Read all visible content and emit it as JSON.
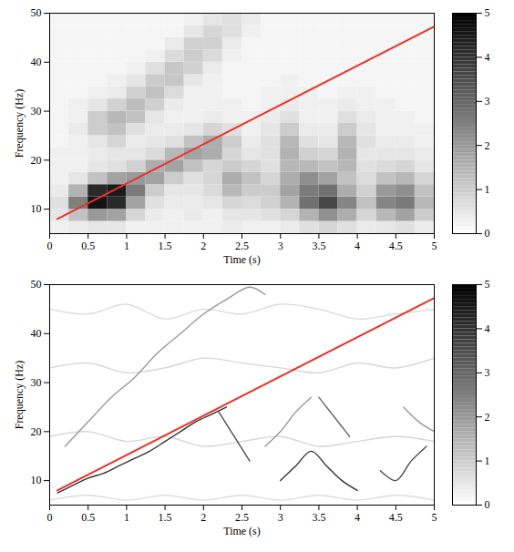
{
  "chart_data": [
    {
      "type": "heatmap",
      "x_label": "Time (s)",
      "y_label": "Frequency (Hz)",
      "xlim": [
        0,
        5
      ],
      "ylim": [
        5,
        50
      ],
      "xticks": [
        0,
        0.5,
        1,
        1.5,
        2,
        2.5,
        3,
        3.5,
        4,
        4.5,
        5
      ],
      "yticks": [
        10,
        20,
        30,
        40,
        50
      ],
      "x_bins": [
        0,
        0.25,
        0.5,
        0.75,
        1,
        1.25,
        1.5,
        1.75,
        2,
        2.25,
        2.5,
        2.75,
        3,
        3.25,
        3.5,
        3.75,
        4,
        4.25,
        4.5,
        4.75,
        5
      ],
      "y_bins": [
        5,
        7.5,
        10,
        12.5,
        15,
        17.5,
        20,
        22.5,
        25,
        27.5,
        30,
        32.5,
        35,
        37.5,
        40,
        42.5,
        45,
        47.5,
        50
      ],
      "cells": [
        [
          0.3,
          0.4,
          0.5,
          0.5,
          0.3,
          0.3,
          0.3,
          0.3,
          0.3,
          0.4,
          0.3,
          0.3,
          0.4,
          0.6,
          0.8,
          0.6,
          0.4,
          0.5,
          0.6,
          0.4
        ],
        [
          0.5,
          1.2,
          2.0,
          1.8,
          0.8,
          0.4,
          0.3,
          0.4,
          0.3,
          0.5,
          0.5,
          0.6,
          0.8,
          1.5,
          2.2,
          1.6,
          0.8,
          1.4,
          1.8,
          1.0
        ],
        [
          0.6,
          2.5,
          4.6,
          4.2,
          1.8,
          0.6,
          0.4,
          0.4,
          0.5,
          0.8,
          0.7,
          0.9,
          1.5,
          2.8,
          3.6,
          2.4,
          1.2,
          2.4,
          2.6,
          1.4
        ],
        [
          0.4,
          1.5,
          4.2,
          4.5,
          2.6,
          1.0,
          0.5,
          0.5,
          0.7,
          1.4,
          1.0,
          1.0,
          1.8,
          2.6,
          2.8,
          1.6,
          0.9,
          2.0,
          2.2,
          1.2
        ],
        [
          0.3,
          0.5,
          1.2,
          1.8,
          2.0,
          1.8,
          1.0,
          0.6,
          0.8,
          1.6,
          1.2,
          0.8,
          1.6,
          2.2,
          1.8,
          1.2,
          0.7,
          1.2,
          1.4,
          0.8
        ],
        [
          0.3,
          0.3,
          0.5,
          0.6,
          0.9,
          1.6,
          1.8,
          1.2,
          0.8,
          1.0,
          0.8,
          0.6,
          1.4,
          1.4,
          1.2,
          1.4,
          0.6,
          0.7,
          0.8,
          0.5
        ],
        [
          0.3,
          0.3,
          0.4,
          0.5,
          0.5,
          0.7,
          1.4,
          1.8,
          1.6,
          0.8,
          0.5,
          0.6,
          1.5,
          0.9,
          0.8,
          1.5,
          0.5,
          0.5,
          0.5,
          0.4
        ],
        [
          0.2,
          0.3,
          0.5,
          0.8,
          0.4,
          0.5,
          0.6,
          1.2,
          1.6,
          1.0,
          0.4,
          0.6,
          1.4,
          0.6,
          0.5,
          1.4,
          0.6,
          0.4,
          0.4,
          0.3
        ],
        [
          0.2,
          0.4,
          1.0,
          1.2,
          0.6,
          0.4,
          0.4,
          0.5,
          0.8,
          0.6,
          0.3,
          0.5,
          1.0,
          0.4,
          0.4,
          1.0,
          0.5,
          0.3,
          0.3,
          0.3
        ],
        [
          0.2,
          0.3,
          1.0,
          1.4,
          1.2,
          0.5,
          0.3,
          0.3,
          0.4,
          0.3,
          0.3,
          0.4,
          0.6,
          0.3,
          0.3,
          0.6,
          0.4,
          0.3,
          0.3,
          0.2
        ],
        [
          0.2,
          0.3,
          0.5,
          0.9,
          1.3,
          0.9,
          0.4,
          0.3,
          0.3,
          0.3,
          0.2,
          0.3,
          0.4,
          0.3,
          0.3,
          0.4,
          0.3,
          0.3,
          0.2,
          0.2
        ],
        [
          0.2,
          0.2,
          0.3,
          0.4,
          0.9,
          1.2,
          0.7,
          0.3,
          0.3,
          0.2,
          0.2,
          0.3,
          0.3,
          0.3,
          0.2,
          0.3,
          0.3,
          0.2,
          0.2,
          0.2
        ],
        [
          0.2,
          0.2,
          0.2,
          0.3,
          0.5,
          1.0,
          1.1,
          0.5,
          0.3,
          0.2,
          0.2,
          0.2,
          0.3,
          0.2,
          0.2,
          0.2,
          0.2,
          0.2,
          0.2,
          0.2
        ],
        [
          0.2,
          0.2,
          0.2,
          0.2,
          0.3,
          0.6,
          1.1,
          0.9,
          0.4,
          0.2,
          0.2,
          0.2,
          0.2,
          0.2,
          0.2,
          0.2,
          0.2,
          0.2,
          0.2,
          0.2
        ],
        [
          0.2,
          0.2,
          0.2,
          0.2,
          0.2,
          0.3,
          0.7,
          1.0,
          0.7,
          0.3,
          0.2,
          0.2,
          0.2,
          0.2,
          0.2,
          0.2,
          0.2,
          0.2,
          0.2,
          0.2
        ],
        [
          0.2,
          0.2,
          0.2,
          0.2,
          0.2,
          0.2,
          0.4,
          0.9,
          0.9,
          0.4,
          0.2,
          0.2,
          0.2,
          0.2,
          0.2,
          0.2,
          0.2,
          0.2,
          0.2,
          0.2
        ],
        [
          0.2,
          0.2,
          0.2,
          0.2,
          0.2,
          0.2,
          0.2,
          0.5,
          0.8,
          0.6,
          0.3,
          0.2,
          0.2,
          0.2,
          0.2,
          0.2,
          0.2,
          0.2,
          0.2,
          0.2
        ],
        [
          0.2,
          0.2,
          0.2,
          0.2,
          0.2,
          0.2,
          0.2,
          0.3,
          0.5,
          0.6,
          0.4,
          0.2,
          0.2,
          0.2,
          0.2,
          0.2,
          0.2,
          0.2,
          0.2,
          0.2
        ]
      ],
      "fit_line": {
        "x": [
          0.1,
          5
        ],
        "y": [
          8,
          47.3
        ],
        "color": "#e8322a"
      },
      "colorbar": {
        "range": [
          0,
          5
        ],
        "ticks": [
          0,
          1,
          2,
          3,
          4,
          5
        ]
      }
    },
    {
      "type": "line",
      "x_label": "Time (s)",
      "y_label": "Frequency (Hz)",
      "xlim": [
        0,
        5
      ],
      "ylim": [
        5,
        50
      ],
      "xticks": [
        0,
        0.5,
        1,
        1.5,
        2,
        2.5,
        3,
        3.5,
        4,
        4.5,
        5
      ],
      "yticks": [
        10,
        20,
        30,
        40,
        50
      ],
      "ridges": [
        {
          "x": [
            0,
            0.5,
            1,
            1.5,
            2,
            2.5,
            3,
            3.5,
            4,
            4.5,
            5
          ],
          "y": [
            6,
            7,
            6,
            7,
            6,
            7,
            6,
            7,
            6,
            7,
            6
          ],
          "level": 0.7
        },
        {
          "x": [
            0,
            0.5,
            1,
            1.5,
            2,
            2.5,
            3,
            3.5,
            4,
            4.5,
            5
          ],
          "y": [
            19,
            20,
            18,
            19,
            17,
            18,
            19,
            17,
            18,
            19,
            18
          ],
          "level": 0.8
        },
        {
          "x": [
            0,
            0.5,
            1,
            1.5,
            2,
            2.5,
            3,
            3.5,
            4,
            4.5,
            5
          ],
          "y": [
            33,
            34,
            32,
            33,
            35,
            34,
            33,
            32,
            34,
            33,
            35
          ],
          "level": 0.8
        },
        {
          "x": [
            0,
            0.5,
            1,
            1.5,
            2,
            2.5,
            3,
            3.5,
            4,
            4.5,
            5
          ],
          "y": [
            45,
            44,
            46,
            43,
            45,
            44,
            46,
            45,
            43,
            44,
            45
          ],
          "level": 0.7
        },
        {
          "x": [
            0.2,
            0.5,
            0.8,
            1.1,
            1.4,
            1.7,
            2.0,
            2.3,
            2.6,
            2.8
          ],
          "y": [
            17,
            22,
            27,
            31,
            36,
            40,
            44,
            47,
            49.5,
            48
          ],
          "level": 2
        },
        {
          "x": [
            0.1,
            0.3,
            0.5,
            0.7,
            0.9,
            1.1,
            1.3,
            1.5,
            1.7,
            1.9,
            2.1,
            2.3
          ],
          "y": [
            7.5,
            9,
            10.5,
            11.5,
            13,
            14.5,
            16,
            18,
            20,
            22,
            23.5,
            25
          ],
          "level": 4
        },
        {
          "x": [
            2.2,
            2.4,
            2.6
          ],
          "y": [
            24,
            19,
            14
          ],
          "level": 3.5
        },
        {
          "x": [
            2.8,
            3.0,
            3.2,
            3.4
          ],
          "y": [
            17,
            20,
            24,
            27
          ],
          "level": 2
        },
        {
          "x": [
            3.0,
            3.2,
            3.4,
            3.6,
            3.8,
            4.0
          ],
          "y": [
            10,
            13,
            16,
            13,
            10,
            8
          ],
          "level": 4
        },
        {
          "x": [
            3.5,
            3.6,
            3.7,
            3.8,
            3.9
          ],
          "y": [
            27,
            25,
            23,
            21,
            19
          ],
          "level": 3
        },
        {
          "x": [
            4.3,
            4.5,
            4.7,
            4.9
          ],
          "y": [
            12,
            10,
            14,
            17
          ],
          "level": 3.5
        },
        {
          "x": [
            4.6,
            4.8,
            5.0
          ],
          "y": [
            25,
            22,
            20
          ],
          "level": 2
        }
      ],
      "fit_line": {
        "x": [
          0.1,
          5
        ],
        "y": [
          8,
          47.3
        ],
        "color": "#e8322a"
      },
      "colorbar": {
        "range": [
          0,
          5
        ],
        "ticks": [
          0,
          1,
          2,
          3,
          4,
          5
        ]
      }
    }
  ]
}
